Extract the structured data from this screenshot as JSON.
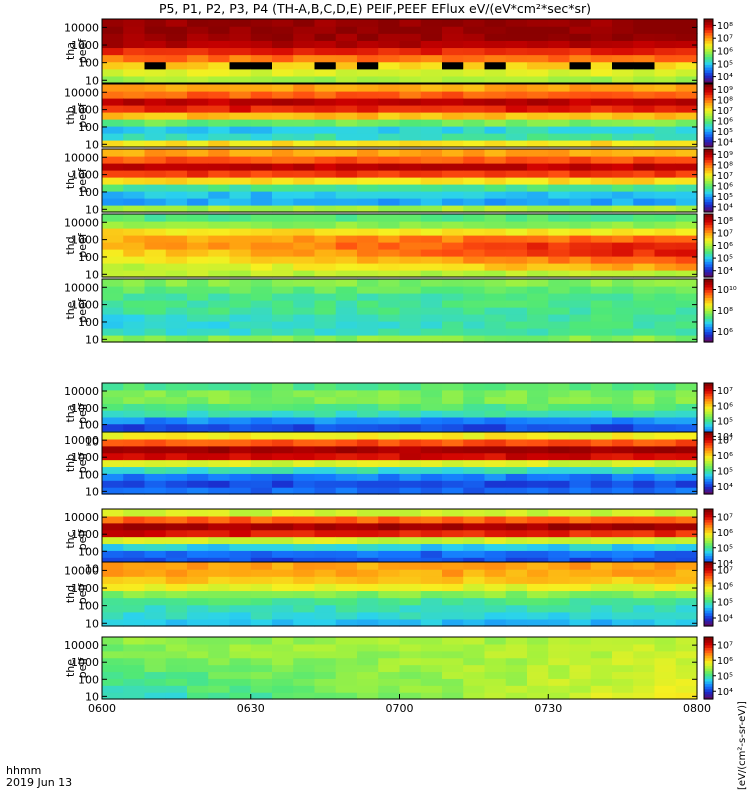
{
  "chart_data": {
    "type": "heatmap",
    "title": "P5, P1, P2, P3, P4 (TH-A,B,C,D,E) PEIF,PEEF EFlux eV/(eV*cm²*sec*sr)",
    "x_axis_label": [
      "hhmm",
      "2019 Jun 13"
    ],
    "x_ticks": [
      "0600",
      "0630",
      "0700",
      "0730",
      "0800"
    ],
    "x_range_minutes": [
      360,
      480
    ],
    "y_ticks": [
      "10",
      "100",
      "1000",
      "10000"
    ],
    "y_scale": "log",
    "y_range_eV": [
      7,
      30000
    ],
    "colorbar_units": "[eV/(cm²-s-sr-eV)]",
    "colormap": [
      "#5a0a6a",
      "#1a2acc",
      "#1478ff",
      "#2ad2ee",
      "#4ee878",
      "#a8f23a",
      "#f6f020",
      "#ffa810",
      "#ff5010",
      "#d00000",
      "#8a0000"
    ],
    "colorbar_ticks": {
      "A": [
        "10⁴",
        "10⁵",
        "10⁶",
        "10⁷",
        "10⁸"
      ],
      "B": [
        "10⁴",
        "10⁵",
        "10⁶",
        "10⁷",
        "10⁸",
        "10⁹"
      ],
      "C": [
        "10⁴",
        "10⁵",
        "10⁶",
        "10⁷",
        "10⁸",
        "10⁹"
      ],
      "D": [
        "10⁴",
        "10⁵",
        "10⁶",
        "10⁷",
        "10⁸"
      ],
      "E": [
        "10⁶",
        "10⁸",
        "10¹⁰"
      ],
      "F": [
        "10⁴",
        "10⁵",
        "10⁶",
        "10⁷"
      ],
      "G": [
        "10⁴",
        "10⁵",
        "10⁶",
        "10⁷"
      ]
    },
    "panels": [
      {
        "label1": "tha",
        "label2": "peef",
        "cb": "A",
        "base": [
          0.5,
          0.56,
          0.64,
          0.76,
          0.86,
          0.95,
          0.98,
          0.99,
          0.99
        ],
        "trend": [
          0,
          0,
          0,
          0,
          0,
          0,
          0,
          0,
          0
        ],
        "black_row": 2,
        "white_rows": []
      },
      {
        "label1": "thb",
        "label2": "peef",
        "cb": "B",
        "base": [
          0.62,
          0.34,
          0.3,
          0.43,
          0.67,
          0.86,
          0.93,
          0.78,
          0.7
        ],
        "trend": [
          0,
          0.05,
          0.05,
          0.03,
          0,
          0,
          0,
          0,
          0
        ],
        "black_row": -1,
        "white_rows": []
      },
      {
        "label1": "thc",
        "label2": "peef",
        "cb": "C",
        "base": [
          0.5,
          0.25,
          0.28,
          0.38,
          0.63,
          0.83,
          0.93,
          0.8,
          0.7
        ],
        "trend": [
          0,
          0,
          0,
          0,
          0,
          0,
          0,
          0,
          0
        ],
        "black_row": -1,
        "white_rows": []
      },
      {
        "label1": "thd",
        "label2": "peef",
        "cb": "D",
        "base": [
          0.52,
          0.58,
          0.65,
          0.7,
          0.74,
          0.72,
          0.62,
          0.46,
          0.4
        ],
        "trend": [
          0,
          0.18,
          0.22,
          0.25,
          0.2,
          0.1,
          0,
          0,
          0
        ],
        "black_row": -1,
        "white_rows": []
      },
      {
        "label1": "the",
        "label2": "peef",
        "cb": "E",
        "base": [
          0.46,
          0.34,
          0.33,
          0.34,
          0.37,
          0.38,
          0.38,
          0.42,
          0.46
        ],
        "trend": [
          0,
          0.06,
          0.08,
          0.06,
          0,
          0,
          0,
          0,
          0
        ],
        "black_row": -1,
        "white_rows": []
      },
      {
        "label1": "tha",
        "label2": "peif",
        "cb": "F",
        "base": [
          0.3,
          0.18,
          0.14,
          0.22,
          0.35,
          0.4,
          0.45,
          0.45,
          0.4
        ],
        "trend": [
          0,
          0,
          0,
          0,
          0,
          0,
          0,
          0,
          0
        ],
        "black_row": 0,
        "white_rows": []
      },
      {
        "label1": "thb",
        "label2": "peif",
        "cb": "G",
        "base": [
          0.18,
          0.14,
          0.2,
          0.34,
          0.56,
          0.9,
          0.96,
          0.8,
          0.6
        ],
        "trend": [
          0,
          0,
          0,
          0,
          0,
          0,
          0,
          0,
          0
        ],
        "black_row": -1,
        "white_rows": []
      },
      {
        "label1": "thc",
        "label2": "peif",
        "cb": "G",
        "base": [
          0.12,
          0.14,
          0.18,
          0.3,
          0.55,
          0.88,
          0.96,
          0.78,
          0.55
        ],
        "trend": [
          0,
          0,
          0,
          0,
          0,
          -0.05,
          0,
          0,
          0
        ],
        "black_row": 0,
        "white_rows": []
      },
      {
        "label1": "thd",
        "label2": "peif",
        "cb": "G",
        "base": [
          0.28,
          0.32,
          0.34,
          0.38,
          0.46,
          0.58,
          0.66,
          0.7,
          0.7
        ],
        "trend": [
          0,
          0,
          0,
          0,
          0,
          0,
          0,
          0,
          0
        ],
        "black_row": -1,
        "white_rows": []
      },
      {
        "label1": "the",
        "label2": "peif",
        "cb": "G",
        "base": [
          0.4,
          0.42,
          0.43,
          0.44,
          0.45,
          0.46,
          0.47,
          0.48,
          0.48
        ],
        "trend": [
          0.28,
          0.22,
          0.2,
          0.18,
          0.15,
          0.12,
          0.1,
          0.08,
          0.05
        ],
        "black_row": -1,
        "white_rows": []
      }
    ]
  }
}
